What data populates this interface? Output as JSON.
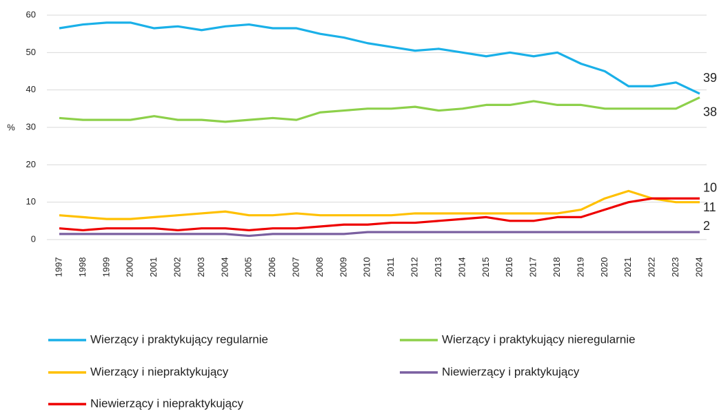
{
  "chart_data": {
    "type": "line",
    "y_label": "%",
    "categories": [
      "1997",
      "1998",
      "1999",
      "2000",
      "2001",
      "2002",
      "2003",
      "2004",
      "2005",
      "2006",
      "2007",
      "2008",
      "2009",
      "2010",
      "2011",
      "2012",
      "2013",
      "2014",
      "2015",
      "2016",
      "2017",
      "2018",
      "2019",
      "2020",
      "2021",
      "2022",
      "2023",
      "2024"
    ],
    "ylim": [
      0,
      60
    ],
    "yticks": [
      0,
      10,
      20,
      30,
      40,
      50,
      60
    ],
    "grid": true,
    "series": [
      {
        "name": "Wierzący i praktykujący regularnie",
        "color": "#1ab0e8",
        "values": [
          56.5,
          57.5,
          58,
          58,
          56.5,
          57,
          56,
          57,
          57.5,
          56.5,
          56.5,
          55,
          54,
          52.5,
          51.5,
          50.5,
          51,
          50,
          49,
          50,
          49,
          50,
          47,
          45,
          41,
          41,
          42,
          39
        ]
      },
      {
        "name": "Wierzący i praktykujący nieregularnie",
        "color": "#8dd04a",
        "values": [
          32.5,
          32,
          32,
          32,
          33,
          32,
          32,
          31.5,
          32,
          32.5,
          32,
          34,
          34.5,
          35,
          35,
          35.5,
          34.5,
          35,
          36,
          36,
          37,
          36,
          36,
          35,
          35,
          35,
          35,
          38
        ]
      },
      {
        "name": "Wierzący i niepraktykujący",
        "color": "#ffc000",
        "values": [
          6.5,
          6,
          5.5,
          5.5,
          6,
          6.5,
          7,
          7.5,
          6.5,
          6.5,
          7,
          6.5,
          6.5,
          6.5,
          6.5,
          7,
          7,
          7,
          7,
          7,
          7,
          7,
          8,
          11,
          13,
          11,
          10,
          10
        ]
      },
      {
        "name": "Niewierzący i praktykujący",
        "color": "#7a5fa0",
        "values": [
          1.5,
          1.5,
          1.5,
          1.5,
          1.5,
          1.5,
          1.5,
          1.5,
          1,
          1.5,
          1.5,
          1.5,
          1.5,
          2,
          2,
          2,
          2,
          2,
          2,
          2,
          2,
          2,
          2,
          2,
          2,
          2,
          2,
          2
        ]
      },
      {
        "name": "Niewierzący i niepraktykujący",
        "color": "#ee0000",
        "values": [
          3,
          2.5,
          3,
          3,
          3,
          2.5,
          3,
          3,
          2.5,
          3,
          3,
          3.5,
          4,
          4,
          4.5,
          4.5,
          5,
          5.5,
          6,
          5,
          5,
          6,
          6,
          8,
          10,
          11,
          11,
          11
        ]
      }
    ]
  }
}
